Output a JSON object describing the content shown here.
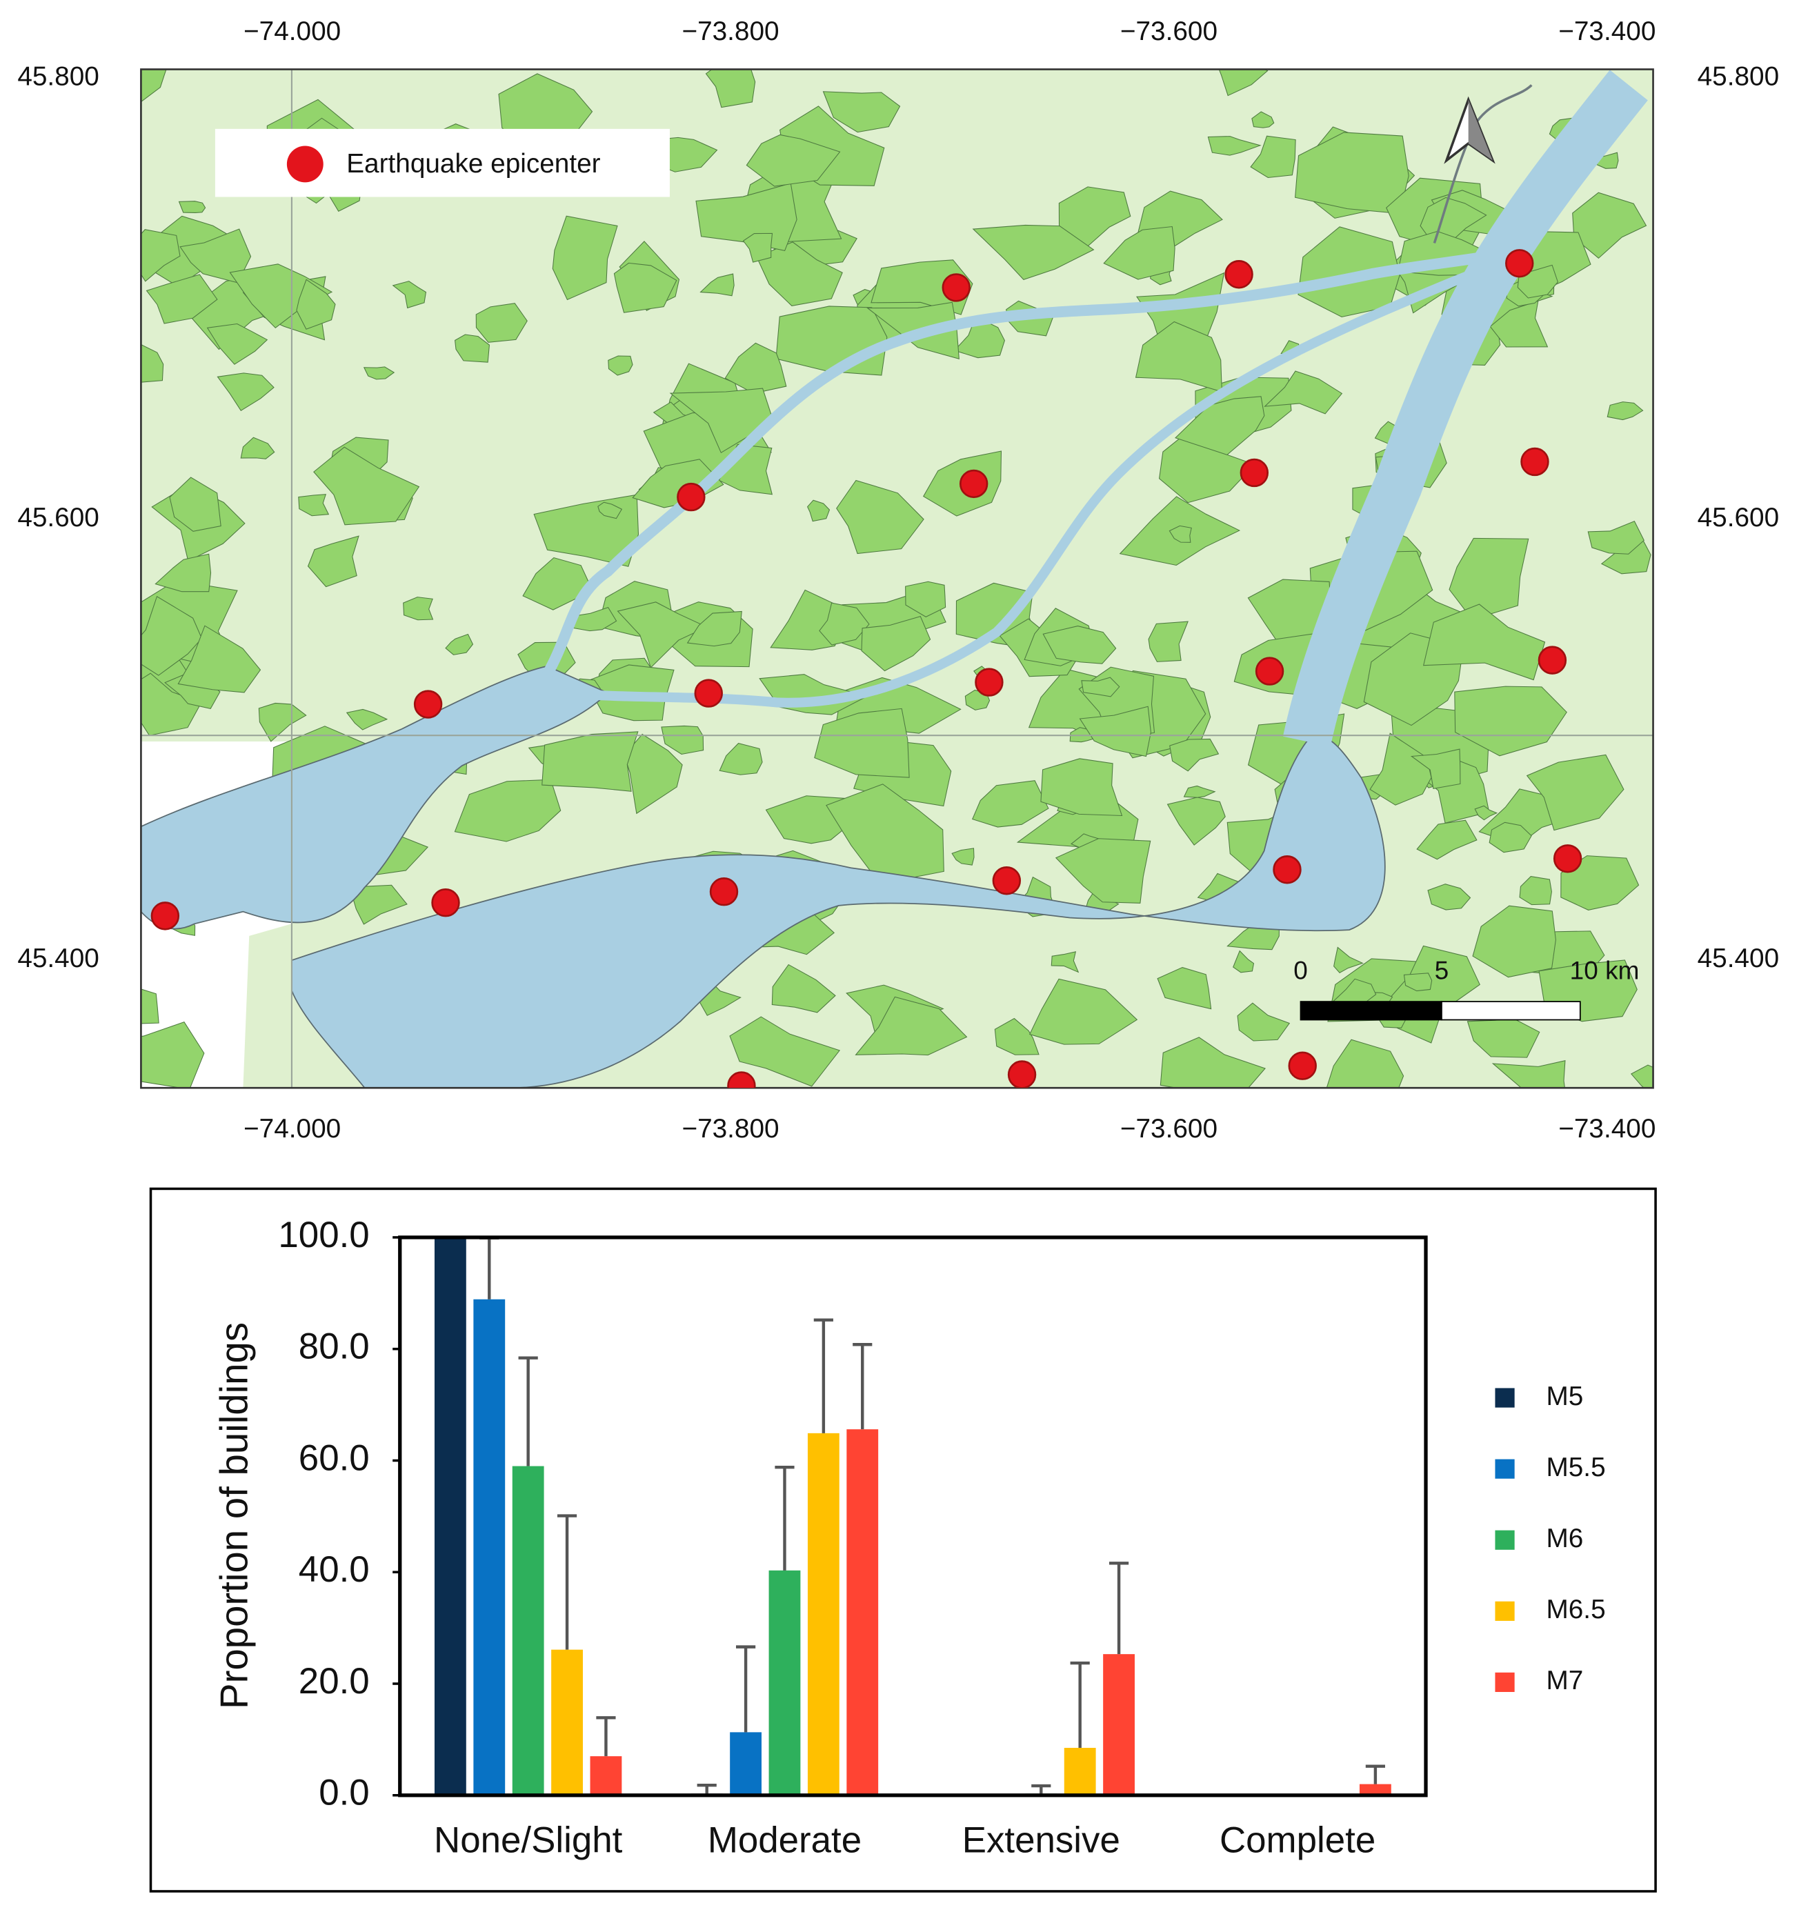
{
  "chart_data": [
    {
      "type": "scatter",
      "xlim": [
        -74.069,
        -73.379
      ],
      "ylim": [
        45.342,
        45.804
      ],
      "xticks": [
        {
          "value": -74.0,
          "label": "−74.000"
        },
        {
          "value": -73.8,
          "label": "−73.800"
        },
        {
          "value": -73.6,
          "label": "−73.600"
        },
        {
          "value": -73.4,
          "label": "−73.400"
        }
      ],
      "yticks": [
        {
          "value": 45.8,
          "label": "45.800"
        },
        {
          "value": 45.6,
          "label": "45.600"
        },
        {
          "value": 45.4,
          "label": "45.400"
        }
      ],
      "series": [
        {
          "name": "Earthquake epicenter",
          "color": "#e3141c",
          "x": [
            -73.697,
            -73.568,
            -73.44,
            -73.818,
            -73.689,
            -73.561,
            -73.433,
            -73.938,
            -73.81,
            -73.682,
            -73.554,
            -73.425,
            -74.058,
            -73.93,
            -73.803,
            -73.674,
            -73.546,
            -73.418,
            -73.795,
            -73.667,
            -73.539
          ],
          "values": [
            45.705,
            45.711,
            45.716,
            45.61,
            45.616,
            45.621,
            45.626,
            45.516,
            45.521,
            45.526,
            45.531,
            45.536,
            45.42,
            45.426,
            45.431,
            45.436,
            45.441,
            45.446,
            45.343,
            45.348,
            45.352
          ]
        }
      ],
      "scale_bar": [
        "0",
        "5",
        "10 km"
      ]
    },
    {
      "type": "bar",
      "y_label": "Proportion of buildings",
      "categories": [
        "None/Slight",
        "Moderate",
        "Extensive",
        "Complete"
      ],
      "ylim": [
        0,
        100
      ],
      "yticks": [
        {
          "value": 0,
          "label": "0.0"
        },
        {
          "value": 20,
          "label": "20.0"
        },
        {
          "value": 40,
          "label": "40.0"
        },
        {
          "value": 60,
          "label": "60.0"
        },
        {
          "value": 80,
          "label": "80.0"
        },
        {
          "value": 100,
          "label": "100.0"
        }
      ],
      "series": [
        {
          "name": "M5",
          "color": "#0b2d4f",
          "values": [
            100,
            0.3,
            0,
            0
          ],
          "errors": [
            0,
            1.5,
            0,
            0
          ]
        },
        {
          "name": "M5.5",
          "color": "#0872c4",
          "values": [
            88.9,
            11.3,
            0,
            0
          ],
          "errors": [
            11,
            15.3,
            0,
            0
          ]
        },
        {
          "name": "M6",
          "color": "#2eb05c",
          "values": [
            59.0,
            40.3,
            0.3,
            0
          ],
          "errors": [
            19.4,
            18.5,
            1.4,
            0
          ]
        },
        {
          "name": "M6.5",
          "color": "#ffc000",
          "values": [
            26.1,
            64.9,
            8.5,
            0
          ],
          "errors": [
            24,
            20.3,
            15.2,
            0
          ]
        },
        {
          "name": "M7",
          "color": "#ff4433",
          "values": [
            7.0,
            65.6,
            25.3,
            2.0
          ],
          "errors": [
            6.9,
            15.2,
            16.3,
            3.2
          ]
        }
      ]
    }
  ]
}
